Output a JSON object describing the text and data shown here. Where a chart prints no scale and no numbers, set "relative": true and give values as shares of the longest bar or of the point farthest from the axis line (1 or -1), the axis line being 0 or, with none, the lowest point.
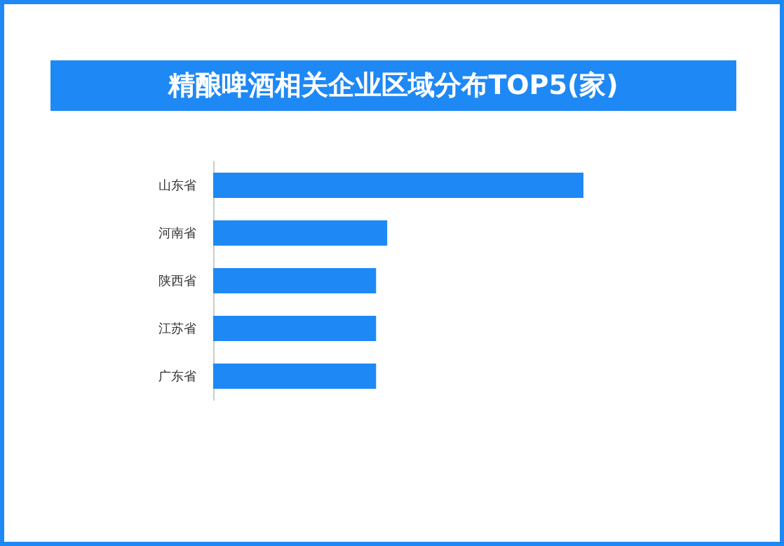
{
  "chart_data": {
    "type": "bar",
    "title": "精酿啤酒相关企业区域分布TOP5(家)",
    "orientation": "horizontal",
    "relative": true,
    "categories": [
      "山东省",
      "河南省",
      "陕西省",
      "江苏省",
      "广东省"
    ],
    "values": [
      1,
      0.47,
      0.44,
      0.44,
      0.44
    ],
    "color": "#1e88f5"
  }
}
